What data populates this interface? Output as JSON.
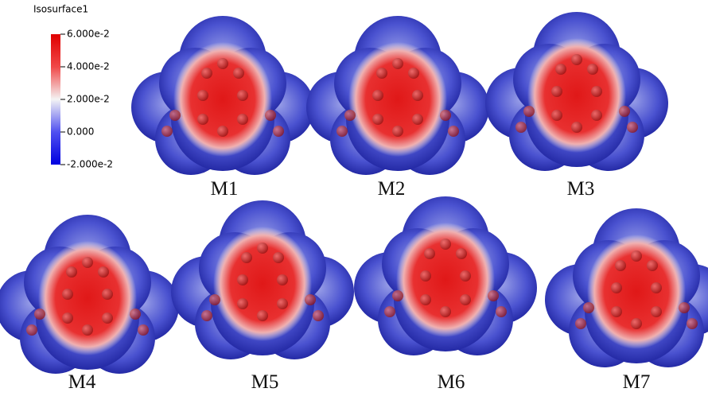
{
  "colorbar": {
    "title": "Isosurface1",
    "range": [
      -0.02,
      0.06
    ],
    "ticks": [
      {
        "value": 0.06,
        "label": "6.000e-2"
      },
      {
        "value": 0.04,
        "label": "4.000e-2"
      },
      {
        "value": 0.02,
        "label": "2.000e-2"
      },
      {
        "value": 0,
        "label": "0.000"
      },
      {
        "value": -0.02,
        "label": "-2.000e-2"
      }
    ]
  },
  "panels": [
    {
      "label": "M1"
    },
    {
      "label": "M2"
    },
    {
      "label": "M3"
    },
    {
      "label": "M4"
    },
    {
      "label": "M5"
    },
    {
      "label": "M6"
    },
    {
      "label": "M7"
    }
  ]
}
